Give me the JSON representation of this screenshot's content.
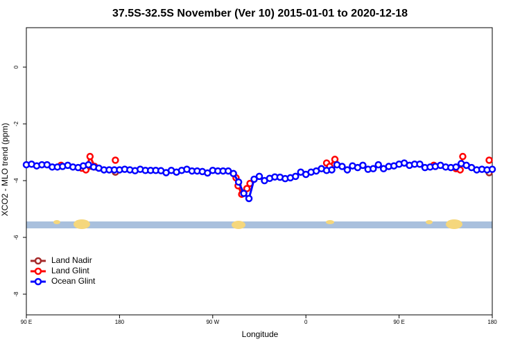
{
  "chart_data": {
    "type": "line",
    "title": "37.5S-32.5S November (Ver 10)   2015-01-01 to 2020-12-18",
    "x_label": "Longitude",
    "y_label": "XCO2 - MLO trend (ppm)",
    "xlim": [
      90,
      540
    ],
    "ylim": [
      -8.73,
      1.39
    ],
    "xticks": [
      {
        "value": 90,
        "label": "90 E"
      },
      {
        "value": 180,
        "label": "180"
      },
      {
        "value": 270,
        "label": "90 W"
      },
      {
        "value": 360,
        "label": "0"
      },
      {
        "value": 450,
        "label": "90 E"
      },
      {
        "value": 540,
        "label": "180"
      }
    ],
    "yticks": [
      -8,
      -6,
      -4,
      -2,
      0
    ],
    "legend": "bottom left",
    "series": [
      {
        "name": "Land Nadir",
        "color": "#a52a2a",
        "x": [
          148,
          176,
          null,
          537
        ],
        "values": [
          -3.56,
          -3.7,
          null,
          -3.72
        ]
      },
      {
        "name": "Land Glint",
        "color": "#ff0000",
        "x": [
          123.5,
          null,
          143.5,
          147.5,
          151.5,
          156,
          null,
          176,
          null,
          292.5,
          294.5,
          298,
          303,
          306,
          null,
          380,
          383,
          388,
          null,
          483.5,
          null,
          505,
          509,
          511.5,
          null,
          537
        ],
        "values": [
          -3.46,
          null,
          -3.56,
          -3.62,
          -3.15,
          -3.5,
          null,
          -3.28,
          null,
          -3.9,
          -4.18,
          -4.48,
          -4.28,
          -4.1,
          null,
          -3.38,
          -3.5,
          -3.25,
          null,
          -3.46,
          null,
          -3.58,
          -3.62,
          -3.15,
          null,
          -3.28
        ]
      },
      {
        "name": "Ocean Glint",
        "color": "#0000ff",
        "x": [
          90,
          95,
          100,
          105,
          110,
          115,
          120,
          125,
          130,
          135,
          140,
          145,
          150,
          155,
          160,
          165,
          170,
          175,
          180,
          185,
          190,
          195,
          200,
          205,
          210,
          215,
          220,
          225,
          230,
          235,
          240,
          245,
          250,
          255,
          260,
          265,
          270,
          275,
          280,
          285,
          290,
          295,
          300,
          305,
          310,
          315,
          320,
          325,
          330,
          335,
          340,
          345,
          350,
          355,
          360,
          365,
          370,
          375,
          380,
          385,
          390,
          395,
          400,
          405,
          410,
          415,
          420,
          425,
          430,
          435,
          440,
          445,
          450,
          455,
          460,
          465,
          470,
          475,
          480,
          485,
          490,
          495,
          500,
          505,
          510,
          515,
          520,
          525,
          530,
          535,
          540
        ],
        "values": [
          -3.44,
          -3.42,
          -3.48,
          -3.44,
          -3.44,
          -3.52,
          -3.52,
          -3.5,
          -3.46,
          -3.52,
          -3.54,
          -3.48,
          -3.44,
          -3.52,
          -3.56,
          -3.62,
          -3.62,
          -3.62,
          -3.62,
          -3.6,
          -3.62,
          -3.65,
          -3.6,
          -3.64,
          -3.64,
          -3.64,
          -3.65,
          -3.72,
          -3.64,
          -3.7,
          -3.64,
          -3.6,
          -3.66,
          -3.66,
          -3.68,
          -3.73,
          -3.64,
          -3.66,
          -3.66,
          -3.66,
          -3.75,
          -4.05,
          -4.45,
          -4.63,
          -3.95,
          -3.85,
          -4.0,
          -3.92,
          -3.87,
          -3.88,
          -3.93,
          -3.9,
          -3.85,
          -3.7,
          -3.78,
          -3.7,
          -3.66,
          -3.58,
          -3.64,
          -3.62,
          -3.44,
          -3.5,
          -3.62,
          -3.48,
          -3.54,
          -3.46,
          -3.6,
          -3.58,
          -3.44,
          -3.58,
          -3.5,
          -3.48,
          -3.42,
          -3.38,
          -3.46,
          -3.42,
          -3.42,
          -3.54,
          -3.52,
          -3.5,
          -3.46,
          -3.52,
          -3.54,
          -3.52,
          -3.4,
          -3.46,
          -3.54,
          -3.62,
          -3.6,
          -3.62,
          -3.6
        ]
      }
    ]
  }
}
